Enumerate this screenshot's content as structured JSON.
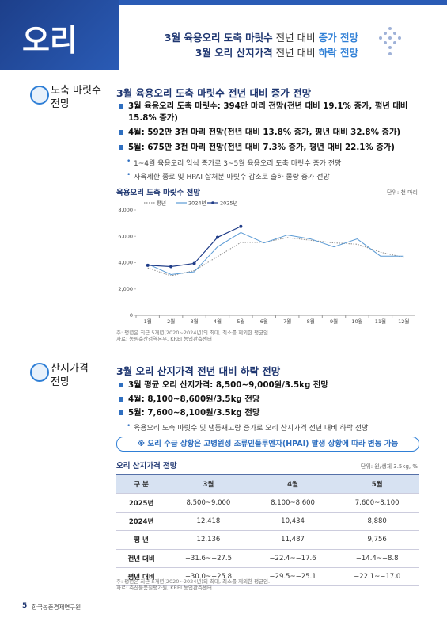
{
  "header": {
    "title": "오리",
    "headline": [
      [
        "3월 육용오리 도축 마릿수",
        "전년 대비",
        "증가 전망"
      ],
      [
        "3월 오리 산지가격",
        "전년 대비",
        "하락 전망"
      ]
    ]
  },
  "section1": {
    "label": [
      "도축 마릿수",
      "전망"
    ],
    "heading": "3월 육용오리 도축 마릿수 전년 대비 증가 전망",
    "bullets": [
      "3월 육용오리 도축 마릿수: 394만 마리 전망(전년 대비 19.1% 증가, 평년 대비 15.8% 증가)",
      "4월: 592만 3천 마리 전망(전년 대비 13.8% 증가, 평년 대비 32.8% 증가)",
      "5월: 675만 3천 마리 전망(전년 대비 7.3% 증가, 평년 대비 22.1% 증가)"
    ],
    "subbullets": [
      "1~4월 육용오리 입식 증가로 3~5월 육용오리 도축 마릿수 증가 전망",
      "사육제한 종료 및 HPAI 살처분 마릿수 감소로 출하 물량 증가 전망"
    ],
    "notes": [
      "주: 평년은 최근 5개년(2020~2024년)의 최대, 최소를 제외한 평균임.",
      "자료: 농림축산검역본부, KREI 농업관측센터"
    ]
  },
  "chart_data": {
    "type": "line",
    "title": "육용오리 도축 마릿수 전망",
    "unit": "단위: 천 마리",
    "categories": [
      "1월",
      "2월",
      "3월",
      "4월",
      "5월",
      "6월",
      "7월",
      "8월",
      "9월",
      "10월",
      "11월",
      "12월"
    ],
    "series": [
      {
        "name": "평년",
        "color": "#8a8a8a",
        "dash": "dotted",
        "values": [
          3600,
          3000,
          3400,
          4460,
          5530,
          5550,
          5900,
          5700,
          5500,
          5400,
          4800,
          4400
        ]
      },
      {
        "name": "2024년",
        "color": "#5b9bd5",
        "values": [
          3900,
          3100,
          3310,
          5200,
          6290,
          5500,
          6100,
          5800,
          5200,
          5800,
          4500,
          4500
        ]
      },
      {
        "name": "2025년",
        "color": "#1f3c88",
        "markers": true,
        "values": [
          3800,
          3700,
          3940,
          5923,
          6753,
          null,
          null,
          null,
          null,
          null,
          null,
          null
        ]
      }
    ],
    "ylim": [
      0,
      8000
    ],
    "yticks": [
      0,
      {
        "value": 2000,
        "label": "2,000"
      },
      {
        "value": 4000,
        "label": "4,000"
      },
      {
        "value": 6000,
        "label": "6,000"
      },
      {
        "value": 8000,
        "label": "8,000"
      }
    ],
    "grid": false,
    "legend": "upper left"
  },
  "section2": {
    "label": [
      "산지가격",
      "전망"
    ],
    "heading": "3월 오리 산지가격 전년 대비 하락 전망",
    "bullets": [
      "3월 평균 오리 산지가격: 8,500~9,000원/3.5kg 전망",
      "4월: 8,100~8,600원/3.5kg 전망",
      "5월: 7,600~8,100원/3.5kg 전망"
    ],
    "subbullets": [
      "육용오리 도축 마릿수 및 냉동재고량 증가로 오리 산지가격 전년 대비 하락 전망"
    ],
    "notice": "※ 오리 수급 상황은 고병원성 조류인플루엔자(HPAI) 발생 상황에 따라 변동 가능",
    "table_title": "오리 산지가격 전망",
    "unit": "단위: 원/생체 3.5kg, %",
    "table": {
      "header": [
        "구 분",
        "3월",
        "4월",
        "5월"
      ],
      "rows": [
        [
          "2025년",
          "8,500~9,000",
          "8,100~8,600",
          "7,600~8,100"
        ],
        [
          "2024년",
          "12,418",
          "10,434",
          "8,880"
        ],
        [
          "평 년",
          "12,136",
          "11,487",
          "9,756"
        ],
        [
          "전년 대비",
          "−31.6~−27.5",
          "−22.4~−17.6",
          "−14.4~−8.8"
        ],
        [
          "평년 대비",
          "−30.0~−25.8",
          "−29.5~−25.1",
          "−22.1~−17.0"
        ]
      ]
    },
    "notes": [
      "주: 평년은 최근 5개년(2020~2024년)의 최대, 최소를 제외한 평균임.",
      "자료: 축산물품질평가원, KREI 농업관측센터"
    ]
  },
  "footer": {
    "page": "5",
    "org": "한국농촌경제연구원"
  }
}
